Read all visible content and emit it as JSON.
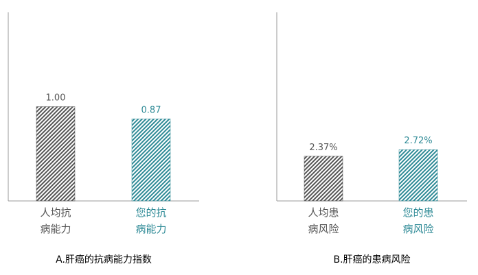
{
  "chart_data": [
    {
      "type": "bar",
      "title": "A.肝癌的抗病能力指数",
      "categories": [
        "人均抗\n病能力",
        "您的抗\n病能力"
      ],
      "values": [
        1,
        0.87
      ],
      "value_labels": [
        "1.00",
        "0.87"
      ],
      "colors": [
        "#555555",
        "#2e8a96"
      ],
      "ylim": [
        0,
        2
      ]
    },
    {
      "type": "bar",
      "title": "B.肝癌的患病风险",
      "categories": [
        "人均患\n病风险",
        "您的患\n病风险"
      ],
      "values": [
        2.37,
        2.72
      ],
      "value_labels": [
        "2.37%",
        "2.72%"
      ],
      "colors": [
        "#555555",
        "#2e8a96"
      ],
      "ylim": [
        0,
        10
      ]
    }
  ]
}
